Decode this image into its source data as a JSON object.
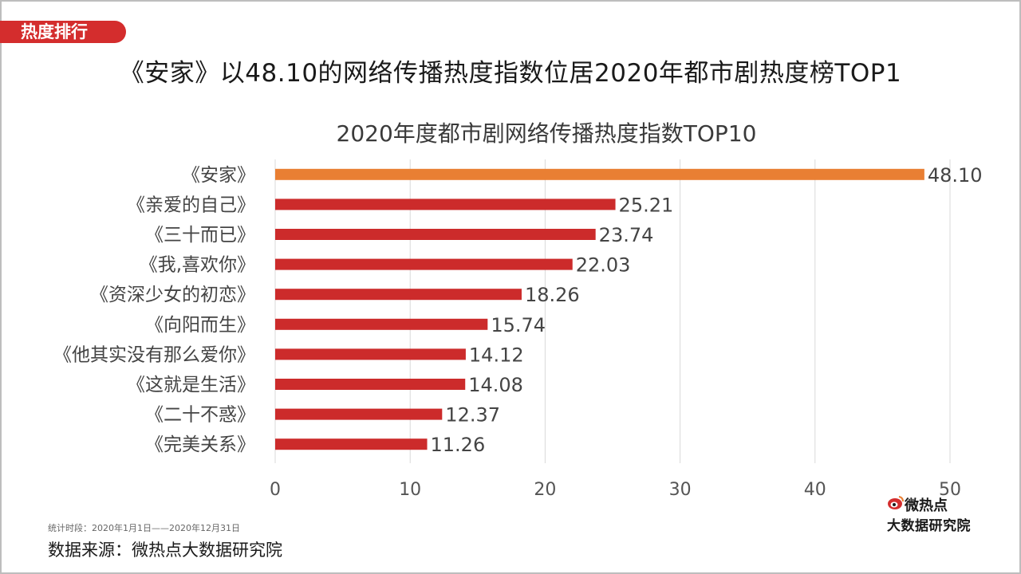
{
  "section_tag": "热度排行",
  "headline": "《安家》以48.10的网络传播热度指数位居2020年都市剧热度榜TOP1",
  "footnote": {
    "period": "统计时段：2020年1月1日——2020年12月31日",
    "source": "数据来源：微热点大数据研究院"
  },
  "logo": {
    "line1": "微热点",
    "line2": "大数据研究院",
    "icon": "weibo-eye-icon"
  },
  "colors": {
    "highlight": "#e97f33",
    "bar": "#cc2b2b",
    "tag": "#d42d2d"
  },
  "chart_data": {
    "type": "bar",
    "orientation": "horizontal",
    "title": "2020年度都市剧网络传播热度指数TOP10",
    "categories": [
      "《安家》",
      "《亲爱的自己》",
      "《三十而已》",
      "《我,喜欢你》",
      "《资深少女的初恋》",
      "《向阳而生》",
      "《他其实没有那么爱你》",
      "《这就是生活》",
      "《二十不惑》",
      "《完美关系》"
    ],
    "values": [
      48.1,
      25.21,
      23.74,
      22.03,
      18.26,
      15.74,
      14.12,
      14.08,
      12.37,
      11.26
    ],
    "value_labels": [
      "48.10",
      "25.21",
      "23.74",
      "22.03",
      "18.26",
      "15.74",
      "14.12",
      "14.08",
      "12.37",
      "11.26"
    ],
    "xlim": [
      0,
      50
    ],
    "xticks": [
      "0",
      "10",
      "20",
      "30",
      "40",
      "50"
    ],
    "grid": "vertical",
    "highlight_index": 0
  }
}
